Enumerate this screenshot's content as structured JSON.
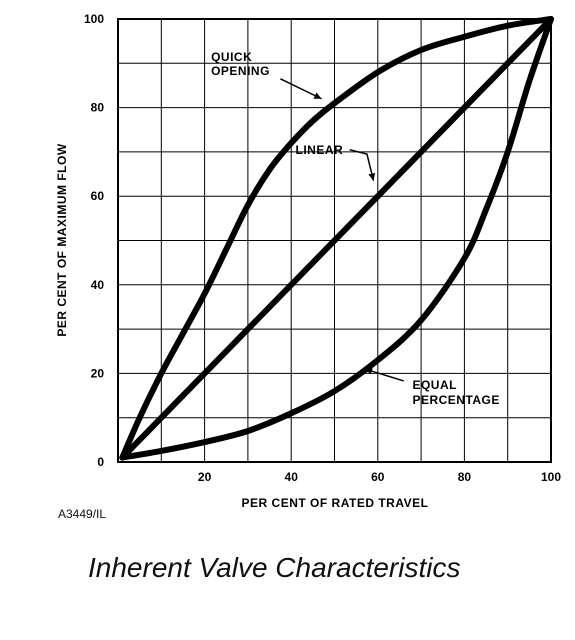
{
  "figure_id": "A3449/IL",
  "caption": "Inherent Valve Characteristics",
  "chart_data": {
    "type": "line",
    "xlabel": "PER CENT OF RATED TRAVEL",
    "ylabel": "PER CENT OF MAXIMUM FLOW",
    "xlim": [
      0,
      100
    ],
    "ylim": [
      0,
      100
    ],
    "x_ticks": [
      0,
      20,
      40,
      60,
      80,
      100
    ],
    "y_ticks": [
      0,
      20,
      40,
      60,
      80,
      100
    ],
    "x_tick_labels": [
      "20",
      "40",
      "60",
      "80",
      "100"
    ],
    "y_tick_labels": [
      "0",
      "20",
      "40",
      "60",
      "80",
      "100"
    ],
    "grid": true,
    "grid_step": 10,
    "series": [
      {
        "name": "QUICK OPENING",
        "label_lines": [
          "QUICK",
          "OPENING"
        ],
        "x": [
          1,
          5,
          10,
          15,
          20,
          25,
          30,
          35,
          40,
          45,
          50,
          60,
          70,
          80,
          90,
          100
        ],
        "y": [
          1,
          10,
          20,
          29,
          38,
          48,
          58,
          66,
          72,
          77,
          81,
          88,
          93,
          96,
          98.5,
          100
        ]
      },
      {
        "name": "LINEAR",
        "label_lines": [
          "LINEAR"
        ],
        "x": [
          1,
          100
        ],
        "y": [
          1,
          100
        ]
      },
      {
        "name": "EQUAL PERCENTAGE",
        "label_lines": [
          "EQUAL",
          "PERCENTAGE"
        ],
        "x": [
          1,
          10,
          20,
          30,
          40,
          50,
          60,
          70,
          80,
          85,
          90,
          95,
          100
        ],
        "y": [
          1,
          2.5,
          4.5,
          7,
          11,
          16,
          23,
          32,
          46,
          57,
          70,
          86,
          100
        ]
      }
    ]
  }
}
